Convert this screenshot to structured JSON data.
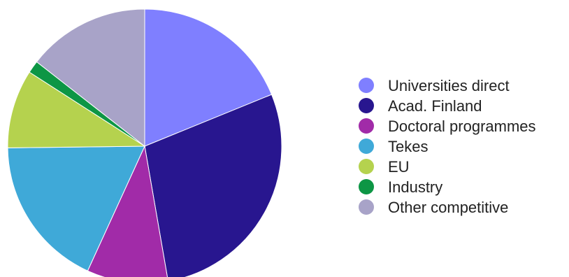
{
  "chart_data": {
    "type": "pie",
    "title": "",
    "legend_position": "right",
    "slices": [
      {
        "label": "Universities direct",
        "value": 19.3,
        "color": "#7f7fff"
      },
      {
        "label": "Acad. Finland",
        "value": 29.1,
        "color": "#28168f"
      },
      {
        "label": "Doctoral programmes",
        "value": 9.8,
        "color": "#a12ba8"
      },
      {
        "label": "Tekes",
        "value": 18.4,
        "color": "#3fa9d8"
      },
      {
        "label": "EU",
        "value": 9.5,
        "color": "#b5d24e"
      },
      {
        "label": "Industry",
        "value": 1.5,
        "color": "#0d9645"
      },
      {
        "label": "Other competitive",
        "value": 14.8,
        "color": "#a8a3c8"
      }
    ]
  }
}
